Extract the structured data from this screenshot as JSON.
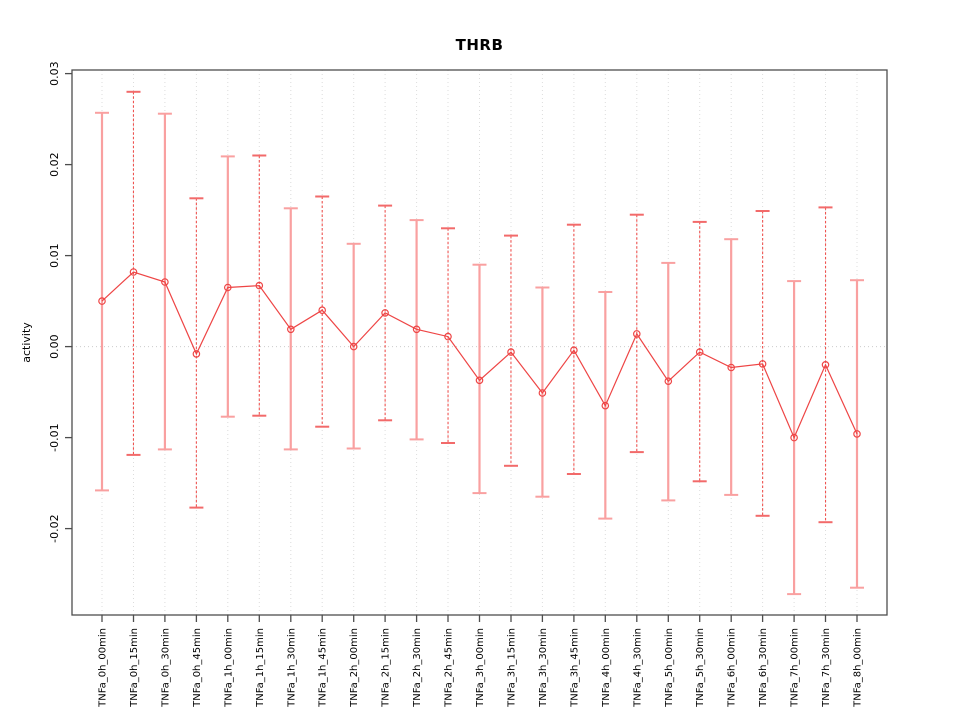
{
  "page": {
    "background": "#ffffff"
  },
  "chart_data": {
    "type": "line",
    "subtype": "points-with-error-bars",
    "title": "THRB",
    "xlabel": "",
    "ylabel": "activity",
    "legend": "none",
    "grid": "vertical dotted gridline per category; dotted horizontal line at y=0",
    "ylim": [
      -0.0295,
      0.0304
    ],
    "yticks": [
      0.03,
      0.02,
      0.01,
      0.0,
      -0.01,
      -0.02
    ],
    "ytick_labels": [
      "0.03",
      "0.02",
      "0.01",
      "0.00",
      "-0.01",
      "-0.02"
    ],
    "categories": [
      "TNFa_0h_00min",
      "TNFa_0h_15min",
      "TNFa_0h_30min",
      "TNFa_0h_45min",
      "TNFa_1h_00min",
      "TNFa_1h_15min",
      "TNFa_1h_30min",
      "TNFa_1h_45min",
      "TNFa_2h_00min",
      "TNFa_2h_15min",
      "TNFa_2h_30min",
      "TNFa_2h_45min",
      "TNFa_3h_00min",
      "TNFa_3h_15min",
      "TNFa_3h_30min",
      "TNFa_3h_45min",
      "TNFa_4h_00min",
      "TNFa_4h_30min",
      "TNFa_5h_00min",
      "TNFa_5h_30min",
      "TNFa_6h_00min",
      "TNFa_6h_30min",
      "TNFa_7h_00min",
      "TNFa_7h_30min",
      "TNFa_8h_00min"
    ],
    "series": [
      {
        "name": "activity",
        "values": [
          0.005,
          0.0082,
          0.0071,
          -0.0008,
          0.0065,
          0.0067,
          0.0019,
          0.004,
          0.0,
          0.0037,
          0.0019,
          0.0011,
          -0.0037,
          -0.0006,
          -0.0051,
          -0.0004,
          -0.0065,
          0.0014,
          -0.0038,
          -0.0006,
          -0.0023,
          -0.0019,
          -0.01,
          -0.002,
          -0.0096
        ],
        "lower": [
          -0.0158,
          -0.0119,
          -0.0113,
          -0.0177,
          -0.0077,
          -0.0076,
          -0.0113,
          -0.0088,
          -0.0112,
          -0.0081,
          -0.0102,
          -0.0106,
          -0.0161,
          -0.0131,
          -0.0165,
          -0.014,
          -0.0189,
          -0.0116,
          -0.0169,
          -0.0148,
          -0.0163,
          -0.0186,
          -0.0272,
          -0.0193,
          -0.0265
        ],
        "upper": [
          0.0257,
          0.028,
          0.0256,
          0.0163,
          0.0209,
          0.021,
          0.0152,
          0.0165,
          0.0113,
          0.0155,
          0.0139,
          0.013,
          0.009,
          0.0122,
          0.0065,
          0.0134,
          0.006,
          0.0145,
          0.0092,
          0.0137,
          0.0118,
          0.0149,
          0.0072,
          0.0153,
          0.0073
        ]
      }
    ],
    "colors": {
      "point": "#ee4545",
      "series_line": "#ee4545",
      "stem_dark": "#ef5350",
      "stem_light": "#f9a0a0",
      "cap_dark": "#f26a6a",
      "cap_light": "#f9a0a0",
      "grid": "#dcdcdc",
      "zero_line": "#cccccc",
      "axis": "#4d4d4d",
      "tick_text": "#000000"
    }
  }
}
